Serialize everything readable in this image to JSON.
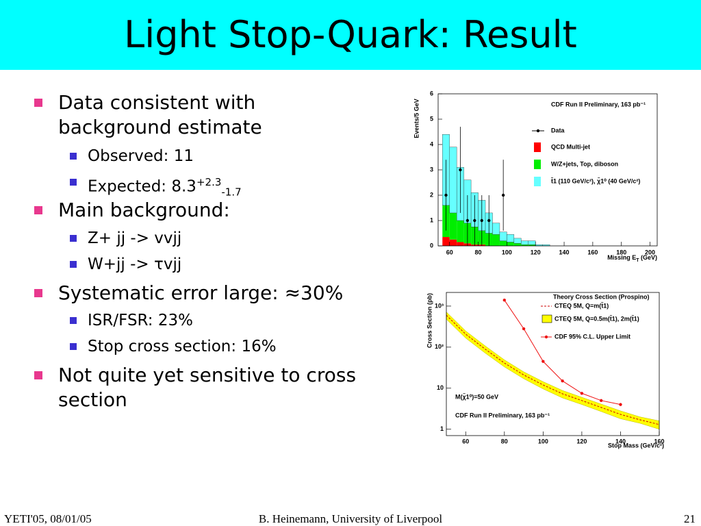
{
  "header": {
    "title": "Light Stop-Quark: Result"
  },
  "bullets": [
    {
      "text": "Data consistent with background estimate",
      "items": [
        {
          "text": "Observed: 11"
        },
        {
          "text": "Expected: 8.3",
          "sup": "+2.3",
          "sub": "-1.7"
        }
      ]
    },
    {
      "text": "Main background:",
      "items": [
        {
          "text": "Z+ jj -> vvjj"
        },
        {
          "text": "W+jj -> τvjj"
        }
      ]
    },
    {
      "text": "Systematic error large: ≈30%",
      "items": [
        {
          "text": "ISR/FSR: 23%"
        },
        {
          "text": "Stop cross section: 16%"
        }
      ]
    },
    {
      "text": "Not quite yet sensitive to cross section"
    }
  ],
  "footer": {
    "left": "YETI'05, 08/01/05",
    "center": "B. Heinemann, University of Liverpool",
    "right": "21"
  },
  "chart_data": [
    {
      "type": "histogram",
      "title": "CDF Run II Preliminary, 163 pb⁻¹",
      "x_label": "Missing E",
      "x_label_sub": "T",
      "x_label_unit": "(GeV)",
      "y_label": "Events/5 GeV",
      "bins": [
        55,
        60,
        65,
        70,
        75,
        80,
        85,
        90,
        95,
        100,
        105,
        110,
        115,
        120,
        125,
        130
      ],
      "stacked": true,
      "series": [
        {
          "name": "QCD Multi-jet",
          "color": "#ff0000",
          "values": [
            0.35,
            0.25,
            0.15,
            0.1,
            0.05,
            0.05,
            0,
            0,
            0,
            0,
            0,
            0,
            0,
            0,
            0
          ]
        },
        {
          "name": "W/Z+jets, Top, diboson",
          "color": "#00ee00",
          "values": [
            1.25,
            1.05,
            0.85,
            0.8,
            0.7,
            0.55,
            0.5,
            0.45,
            0.2,
            0.15,
            0.1,
            0.05,
            0.05,
            0,
            0
          ]
        },
        {
          "name": "t̃1 (110 GeV/c²), χ̃1⁰ (40 GeV/c²)",
          "color": "#66ffff",
          "values": [
            2.8,
            2.6,
            2.1,
            1.7,
            1.35,
            1.2,
            0.8,
            0.45,
            0.35,
            0.3,
            0.2,
            0.15,
            0.15,
            0.05,
            0.05
          ]
        }
      ],
      "data": {
        "name": "Data",
        "color": "#000000",
        "x": [
          57.5,
          67.5,
          72.5,
          77.5,
          82.5,
          87.5,
          97.5
        ],
        "values": [
          2,
          3,
          1,
          1,
          1,
          1,
          2
        ],
        "errors": [
          1.4,
          1.7,
          1,
          1,
          1,
          1,
          1.4
        ]
      },
      "xlim": [
        52,
        205
      ],
      "xticks": [
        60,
        80,
        100,
        120,
        140,
        160,
        180,
        200
      ],
      "ylim": [
        0,
        6
      ],
      "yticks": [
        0,
        1,
        2,
        3,
        4,
        5,
        6
      ]
    },
    {
      "type": "line",
      "title": "Theory Cross Section (Prospino)",
      "x_label": "Stop Mass (GeV/c²)",
      "y_label": "Cross Section (pb)",
      "annotations": [
        "M(χ̃1⁰)=50 GeV",
        "CDF Run II Preliminary, 163 pb⁻¹"
      ],
      "x": [
        50,
        60,
        70,
        80,
        90,
        100,
        110,
        120,
        130,
        140,
        150,
        160
      ],
      "theory": {
        "name": "CTEQ 5M, Q=m(t̃1)",
        "color": "#cc0000",
        "values": [
          600,
          207,
          90,
          41,
          21,
          12,
          7.3,
          5,
          3.4,
          2.3,
          1.7,
          1.3
        ]
      },
      "band": {
        "name": "CTEQ 5M, Q=0.5m(t̃1), 2m(t̃1)",
        "color": "#ffff00",
        "low": [
          480,
          166,
          72,
          33,
          17,
          9.6,
          5.8,
          4,
          2.7,
          1.8,
          1.4,
          1.0
        ],
        "high": [
          720,
          248,
          108,
          49,
          25,
          14.4,
          8.8,
          6,
          4.1,
          2.8,
          2.0,
          1.6
        ]
      },
      "limit": {
        "name": "CDF 95% C.L. Upper Limit",
        "color": "#ee1111",
        "x": [
          80,
          90,
          100,
          110,
          120,
          130,
          140
        ],
        "values": [
          1400,
          280,
          45,
          15,
          7.5,
          5,
          4
        ]
      },
      "log_y": true,
      "xlim": [
        50,
        160
      ],
      "xticks": [
        60,
        80,
        100,
        120,
        140,
        160
      ],
      "ylim": [
        0.7,
        2150
      ],
      "yticks": [
        1,
        10,
        {
          "value": 100,
          "label": "10²"
        },
        {
          "value": 1000,
          "label": "10³"
        }
      ]
    }
  ]
}
